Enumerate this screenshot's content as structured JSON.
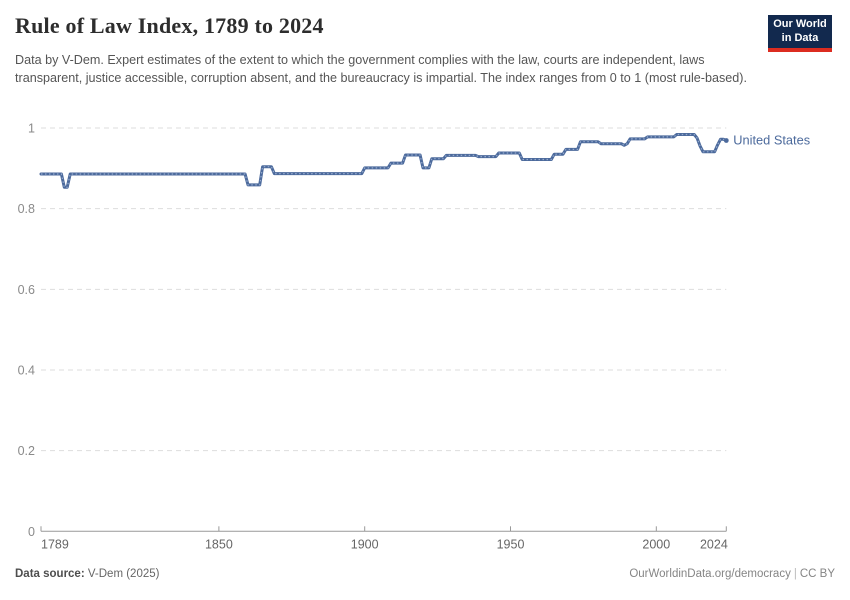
{
  "header": {
    "title": "Rule of Law Index, 1789 to 2024",
    "subtitle": "Data by V-Dem. Expert estimates of the extent to which the government complies with the law, courts are independent, laws transparent, justice accessible, corruption absent, and the bureaucracy is impartial. The index ranges from 0 to 1 (most rule-based).",
    "logo": {
      "line1": "Our World",
      "line2": "in Data",
      "bg_color": "#12294E",
      "stripe_color": "#DC2C20"
    }
  },
  "footer": {
    "source_label": "Data source:",
    "source_value": "V-Dem (2025)",
    "link": "OurWorldinData.org/democracy",
    "separator": "|",
    "license": "CC BY"
  },
  "chart_data": {
    "type": "line",
    "title": "Rule of Law Index, 1789 to 2024",
    "xlabel": "",
    "ylabel": "",
    "xlim": [
      1789,
      2024
    ],
    "ylim": [
      0,
      1
    ],
    "xticks": [
      1789,
      1850,
      1900,
      1950,
      2000,
      2024
    ],
    "yticks": [
      0,
      0.2,
      0.4,
      0.6,
      0.8,
      1
    ],
    "grid": "dashed-horizontal",
    "legend_position": "end-of-line-label",
    "axis_color": "#999999",
    "grid_color": "#dddddd",
    "ytick_label_color": "#8a8a8a",
    "xtick_label_color": "#666666",
    "series": [
      {
        "name": "United States",
        "color": "#4C6A9C",
        "texture_color": "#9DB1D4",
        "points": [
          [
            1789,
            0.886
          ],
          [
            1796,
            0.886
          ],
          [
            1797,
            0.853
          ],
          [
            1798,
            0.853
          ],
          [
            1799,
            0.886
          ],
          [
            1859,
            0.886
          ],
          [
            1860,
            0.859
          ],
          [
            1864,
            0.859
          ],
          [
            1865,
            0.904
          ],
          [
            1868,
            0.904
          ],
          [
            1869,
            0.887
          ],
          [
            1899,
            0.887
          ],
          [
            1900,
            0.901
          ],
          [
            1908,
            0.901
          ],
          [
            1909,
            0.913
          ],
          [
            1913,
            0.913
          ],
          [
            1914,
            0.933
          ],
          [
            1919,
            0.933
          ],
          [
            1920,
            0.901
          ],
          [
            1922,
            0.901
          ],
          [
            1923,
            0.924
          ],
          [
            1927,
            0.924
          ],
          [
            1928,
            0.932
          ],
          [
            1938,
            0.932
          ],
          [
            1939,
            0.929
          ],
          [
            1945,
            0.929
          ],
          [
            1946,
            0.938
          ],
          [
            1953,
            0.938
          ],
          [
            1954,
            0.922
          ],
          [
            1964,
            0.922
          ],
          [
            1965,
            0.935
          ],
          [
            1968,
            0.935
          ],
          [
            1969,
            0.947
          ],
          [
            1973,
            0.947
          ],
          [
            1974,
            0.966
          ],
          [
            1980,
            0.966
          ],
          [
            1981,
            0.961
          ],
          [
            1988,
            0.961
          ],
          [
            1989,
            0.957
          ],
          [
            1990,
            0.961
          ],
          [
            1991,
            0.973
          ],
          [
            1996,
            0.973
          ],
          [
            1997,
            0.978
          ],
          [
            2006,
            0.978
          ],
          [
            2007,
            0.984
          ],
          [
            2013,
            0.984
          ],
          [
            2014,
            0.975
          ],
          [
            2015,
            0.955
          ],
          [
            2016,
            0.941
          ],
          [
            2020,
            0.941
          ],
          [
            2021,
            0.958
          ],
          [
            2022,
            0.972
          ],
          [
            2023,
            0.972
          ],
          [
            2024,
            0.969
          ]
        ]
      }
    ]
  }
}
